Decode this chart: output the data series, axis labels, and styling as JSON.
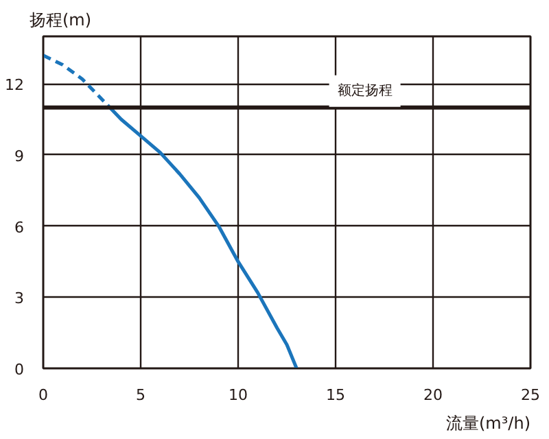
{
  "chart_data": {
    "type": "line",
    "xlabel": "流量(m³/h)",
    "ylabel": "扬程(m)",
    "xlim": [
      0,
      25
    ],
    "ylim": [
      0,
      14
    ],
    "xticks": [
      0,
      5,
      10,
      15,
      20,
      25
    ],
    "yticks": [
      0,
      3,
      6,
      9,
      12
    ],
    "grid": true,
    "marker": "none",
    "series": [
      {
        "color": "#1b75bb",
        "line_style": "dashed",
        "x": [
          0,
          1,
          2,
          3.3
        ],
        "values": [
          13.2,
          12.8,
          12.2,
          11.1
        ]
      },
      {
        "color": "#1b75bb",
        "line_style": "solid",
        "x": [
          3.3,
          4,
          5,
          6,
          7,
          8,
          9,
          10,
          11,
          12,
          12.5,
          13
        ],
        "values": [
          11.1,
          10.5,
          9.8,
          9.1,
          8.2,
          7.2,
          6,
          4.5,
          3.2,
          1.7,
          1,
          0
        ]
      }
    ],
    "ref_lines": [
      {
        "axis": "y",
        "value": 11,
        "label": "额定扬程",
        "color": "#231815"
      }
    ]
  }
}
